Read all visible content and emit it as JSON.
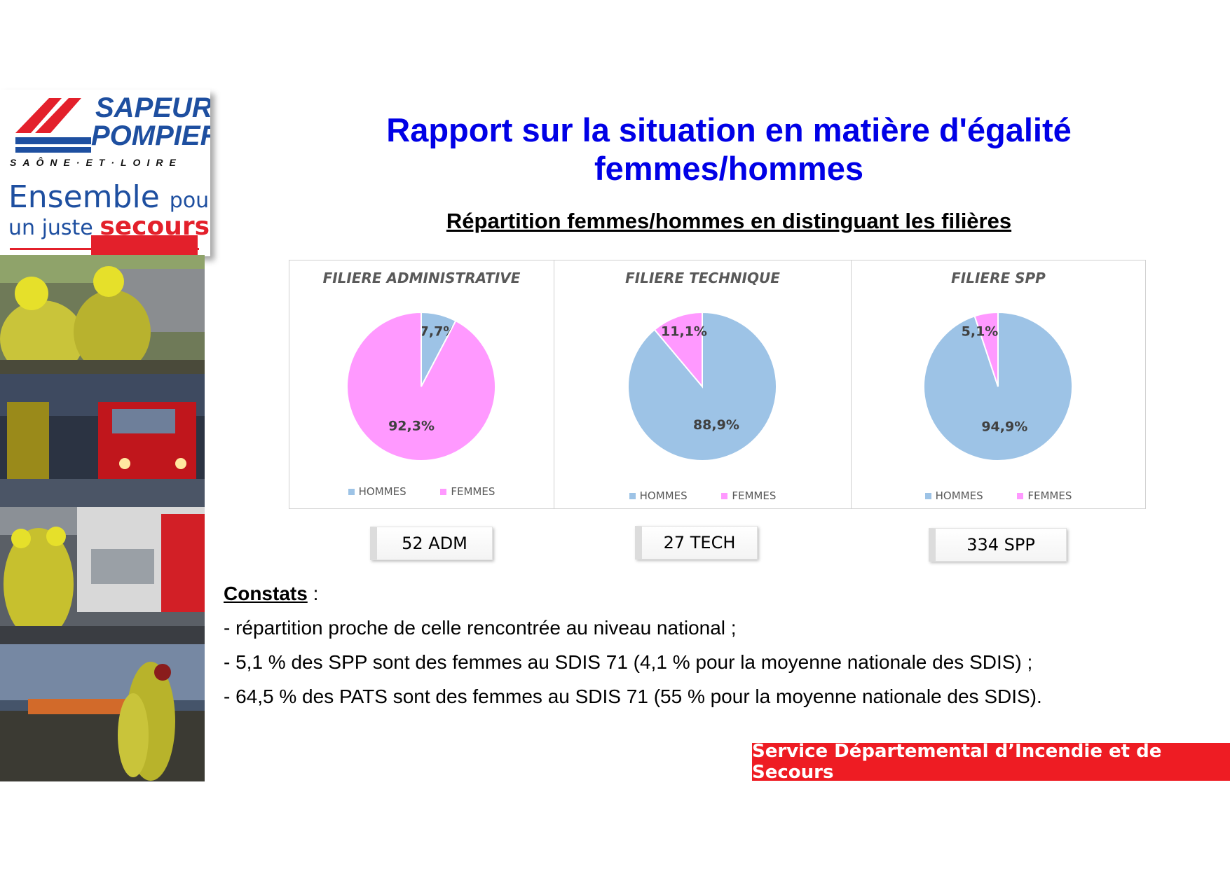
{
  "header": {
    "title": "Rapport sur la situation en matière d'égalité femmes/hommes",
    "subtitle": "Répartition femmes/hommes en distinguant les filières"
  },
  "logo": {
    "line1": "SAPEURS",
    "line2": "POMPIERS",
    "region": "SAÔNE·ET·LOIRE",
    "slogan_1": "Ensemble",
    "slogan_2": "pour",
    "slogan_3": "un juste",
    "slogan_4": "secours"
  },
  "colors": {
    "hommes": "#9dc3e6",
    "femmes": "#ff99ff",
    "title_blue": "#0000e6",
    "banner_red": "#ee1c23"
  },
  "legend": {
    "hommes": "HOMMES",
    "femmes": "FEMMES"
  },
  "chart_data": [
    {
      "type": "pie",
      "title": "FILIERE ADMINISTRATIVE",
      "categories": [
        "HOMMES",
        "FEMMES"
      ],
      "values": [
        7.7,
        92.3
      ],
      "labels": [
        "7,7%",
        "92,3%"
      ],
      "legend_position": "bottom"
    },
    {
      "type": "pie",
      "title": "FILIERE TECHNIQUE",
      "categories": [
        "HOMMES",
        "FEMMES"
      ],
      "values": [
        88.9,
        11.1
      ],
      "labels": [
        "88,9%",
        "11,1%"
      ],
      "legend_position": "bottom"
    },
    {
      "type": "pie",
      "title": "FILIERE SPP",
      "categories": [
        "HOMMES",
        "FEMMES"
      ],
      "values": [
        94.9,
        5.1
      ],
      "labels": [
        "94,9%",
        "5,1%"
      ],
      "legend_position": "bottom"
    }
  ],
  "counts": [
    "52 ADM",
    "27 TECH",
    "334 SPP"
  ],
  "constats": {
    "heading": "Constats",
    "colon": " :",
    "lines": [
      "- répartition proche de celle rencontrée au niveau national ;",
      "- 5,1 % des SPP sont des femmes au SDIS 71 (4,1 % pour la moyenne nationale des SDIS) ;",
      "- 64,5 % des PATS sont des femmes au SDIS 71 (55 % pour la moyenne nationale des SDIS)."
    ]
  },
  "footer": {
    "banner": "Service Départemental d’Incendie et de Secours"
  }
}
